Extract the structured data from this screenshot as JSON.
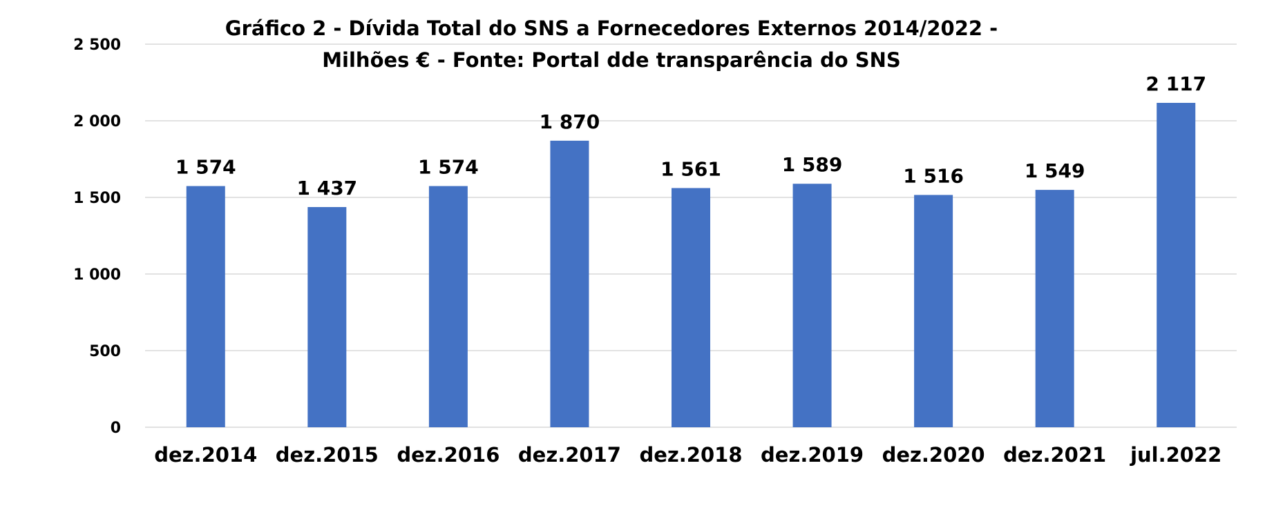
{
  "chart_data": {
    "type": "bar",
    "title_lines": [
      "Gráfico 2 - Dívida Total do SNS a Fornecedores Externos 2014/2022 -",
      "Milhões € - Fonte: Portal dde transparência do SNS"
    ],
    "categories": [
      "dez.2014",
      "dez.2015",
      "dez.2016",
      "dez.2017",
      "dez.2018",
      "dez.2019",
      "dez.2020",
      "dez.2021",
      "jul.2022"
    ],
    "values": [
      1574,
      1437,
      1574,
      1870,
      1561,
      1589,
      1516,
      1549,
      2117
    ],
    "data_labels": [
      "1 574",
      "1 437",
      "1 574",
      "1 870",
      "1 561",
      "1 589",
      "1 516",
      "1 549",
      "2 117"
    ],
    "y_ticks": [
      0,
      500,
      1000,
      1500,
      2000,
      2500
    ],
    "y_tick_labels": [
      "0",
      "500",
      "1 000",
      "1 500",
      "2 000",
      "2 500"
    ],
    "ylim": [
      0,
      2500
    ],
    "grid": true,
    "legend": "none",
    "xlabel": "",
    "ylabel": "",
    "colors": {
      "bar": "#4472C4",
      "grid": "#D9D9D9",
      "text": "#000000"
    }
  }
}
